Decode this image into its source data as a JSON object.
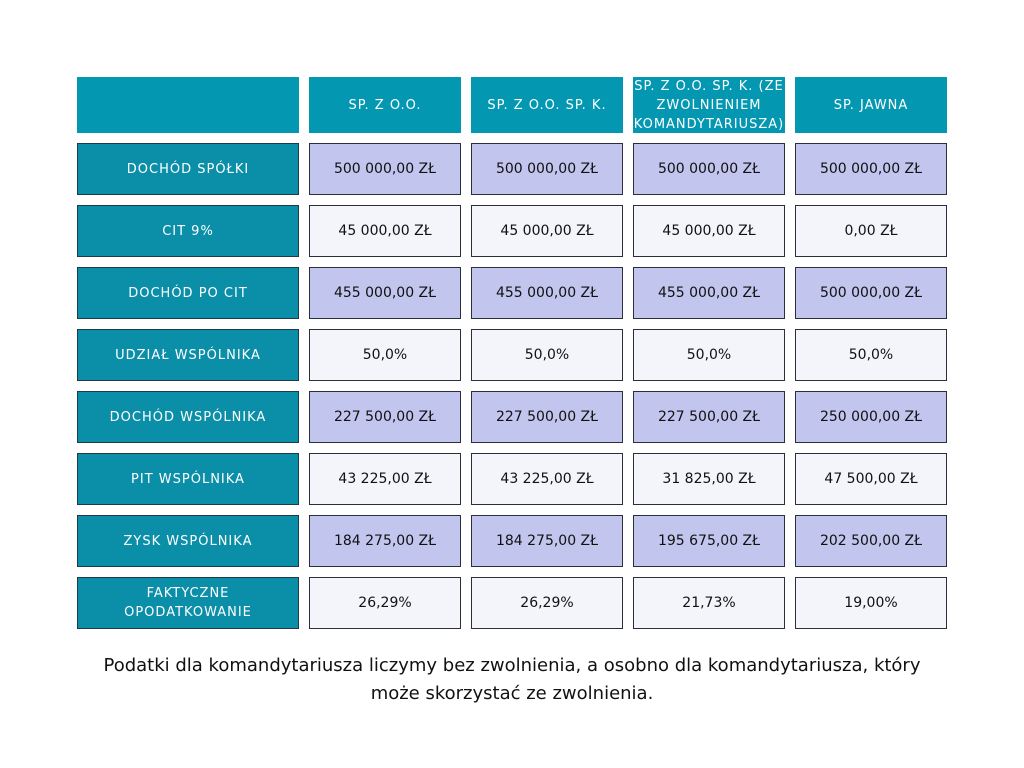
{
  "table": {
    "columns": [
      "SP. Z O.O.",
      "SP. Z O.O. SP. K.",
      "SP. Z O.O. SP. K. (ZE ZWOLNIENIEM KOMANDYTARIUSZA)",
      "SP. JAWNA"
    ],
    "rows": [
      {
        "label": "DOCHÓD SPÓŁKI",
        "cells": [
          "500 000,00 ZŁ",
          "500 000,00 ZŁ",
          "500 000,00 ZŁ",
          "500 000,00 ZŁ"
        ]
      },
      {
        "label": "CIT 9%",
        "cells": [
          "45 000,00 ZŁ",
          "45 000,00 ZŁ",
          "45 000,00 ZŁ",
          "0,00 ZŁ"
        ]
      },
      {
        "label": "DOCHÓD PO CIT",
        "cells": [
          "455 000,00 ZŁ",
          "455 000,00 ZŁ",
          "455 000,00 ZŁ",
          "500 000,00 ZŁ"
        ]
      },
      {
        "label": "UDZIAŁ WSPÓLNIKA",
        "cells": [
          "50,0%",
          "50,0%",
          "50,0%",
          "50,0%"
        ]
      },
      {
        "label": "DOCHÓD WSPÓLNIKA",
        "cells": [
          "227 500,00 ZŁ",
          "227 500,00 ZŁ",
          "227 500,00 ZŁ",
          "250 000,00 ZŁ"
        ]
      },
      {
        "label": "PIT WSPÓLNIKA",
        "cells": [
          "43 225,00 ZŁ",
          "43 225,00 ZŁ",
          "31 825,00 ZŁ",
          "47 500,00 ZŁ"
        ]
      },
      {
        "label": "ZYSK WSPÓLNIKA",
        "cells": [
          "184 275,00 ZŁ",
          "184 275,00 ZŁ",
          "195 675,00 ZŁ",
          "202 500,00 ZŁ"
        ]
      },
      {
        "label": "FAKTYCZNE OPODATKOWANIE",
        "cells": [
          "26,29%",
          "26,29%",
          "21,73%",
          "19,00%"
        ]
      }
    ]
  },
  "note": "Podatki dla komandytariusza liczymy bez zwolnienia, a osobno dla komandytariusza, który może skorzystać ze zwolnienia."
}
